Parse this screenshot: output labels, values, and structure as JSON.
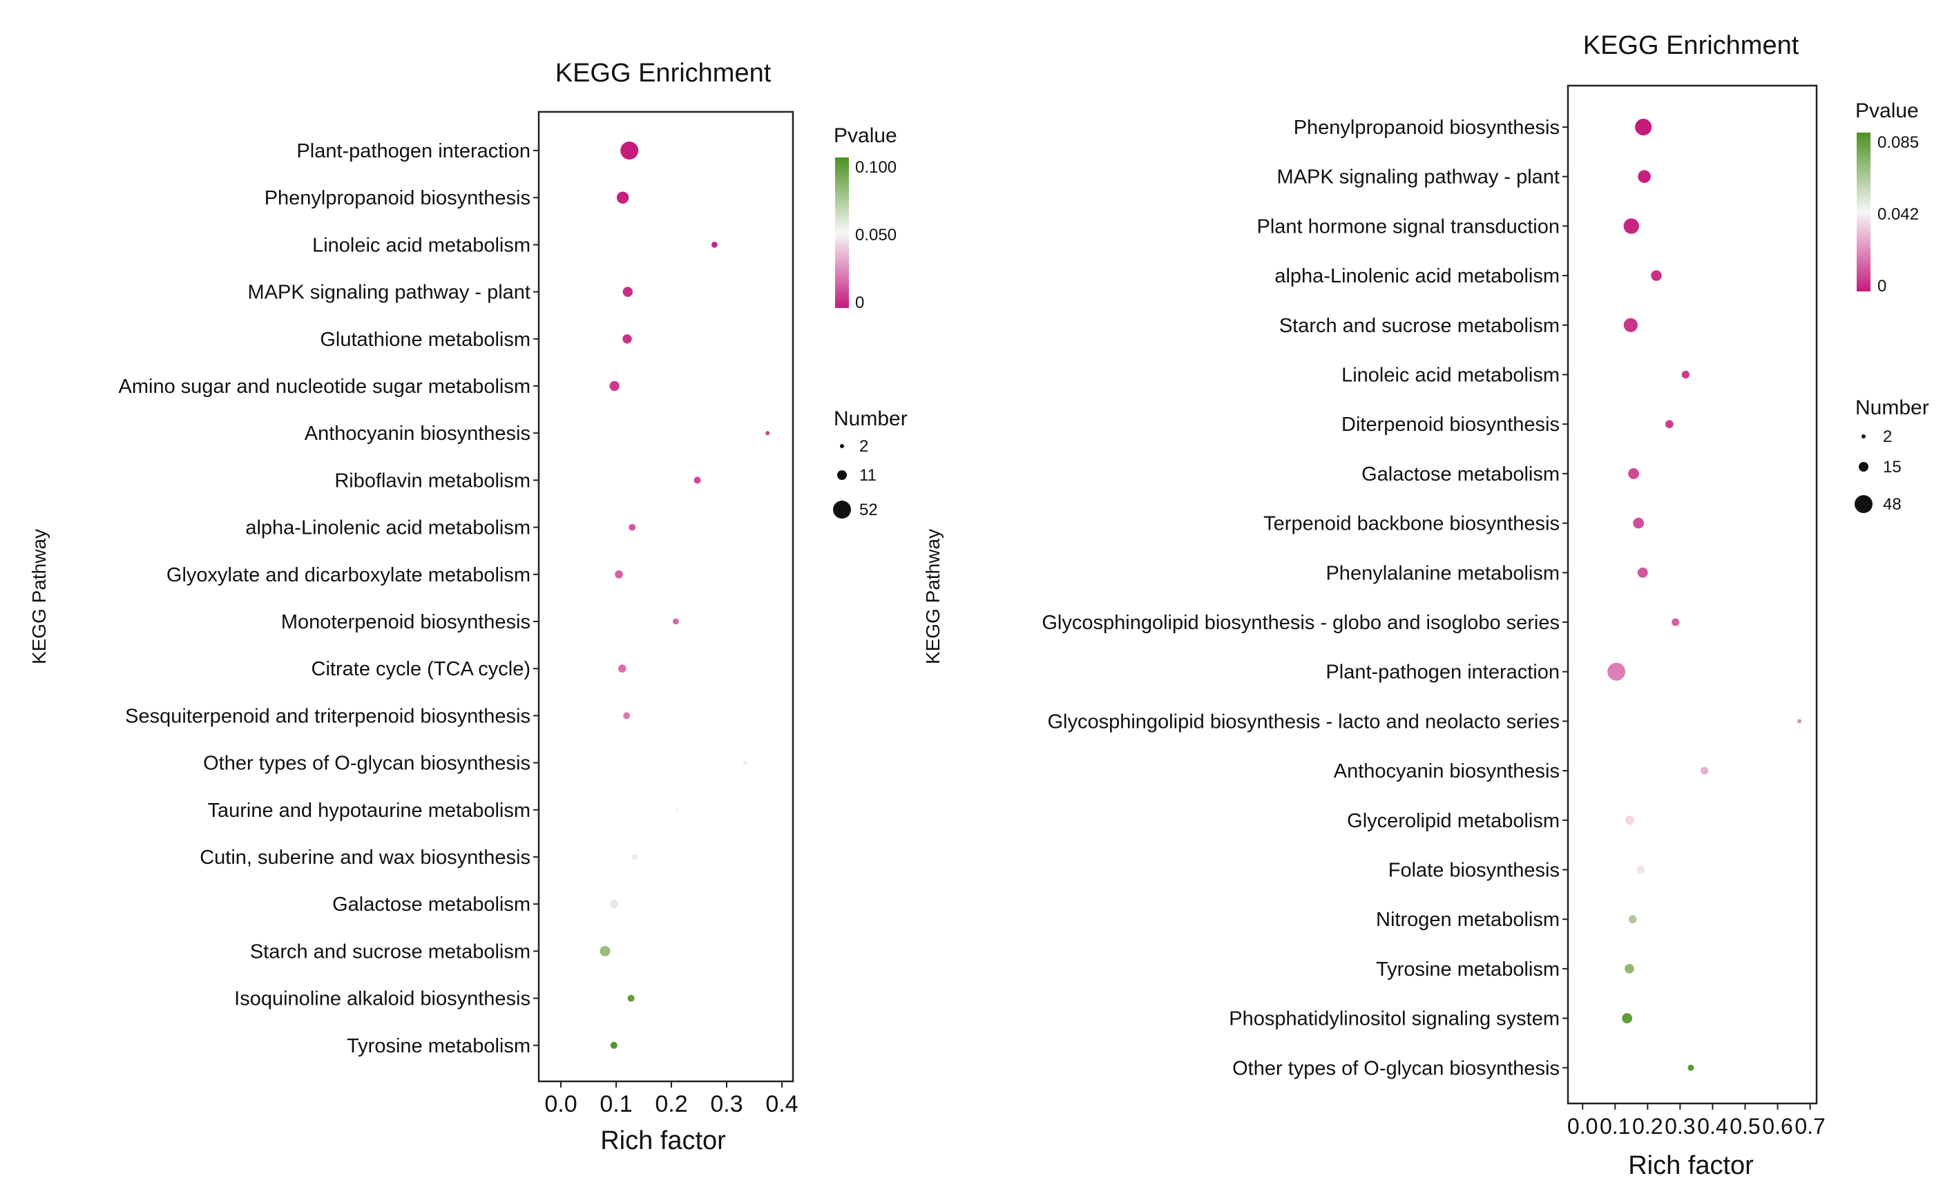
{
  "chart_data": [
    {
      "type": "scatter",
      "title": "KEGG Enrichment",
      "xlabel": "Rich factor",
      "ylabel": "KEGG Pathway",
      "xlim": [
        -0.04,
        0.42
      ],
      "xticks": [
        "0.0",
        "0.1",
        "0.2",
        "0.3",
        "0.4"
      ],
      "xtick_values": [
        0.0,
        0.1,
        0.2,
        0.3,
        0.4
      ],
      "pvalue_legend": {
        "title": "Pvalue",
        "labels": [
          "0.100",
          "0.050",
          "0"
        ],
        "max": 0.1
      },
      "number_legend": {
        "title": "Number",
        "labels": [
          "2",
          "11",
          "52"
        ],
        "values": [
          2,
          11,
          52
        ]
      },
      "points": [
        {
          "pathway": "Plant-pathogen interaction",
          "rich_factor": 0.124,
          "pvalue": 0.0,
          "number": 52
        },
        {
          "pathway": "Phenylpropanoid biosynthesis",
          "rich_factor": 0.112,
          "pvalue": 0.001,
          "number": 18
        },
        {
          "pathway": "Linoleic acid metabolism",
          "rich_factor": 0.278,
          "pvalue": 0.003,
          "number": 3
        },
        {
          "pathway": "MAPK signaling pathway - plant",
          "rich_factor": 0.121,
          "pvalue": 0.004,
          "number": 11
        },
        {
          "pathway": "Glutathione metabolism",
          "rich_factor": 0.12,
          "pvalue": 0.005,
          "number": 9
        },
        {
          "pathway": "Amino sugar and nucleotide sugar metabolism",
          "rich_factor": 0.097,
          "pvalue": 0.007,
          "number": 11
        },
        {
          "pathway": "Anthocyanin biosynthesis",
          "rich_factor": 0.374,
          "pvalue": 0.008,
          "number": 2
        },
        {
          "pathway": "Riboflavin metabolism",
          "rich_factor": 0.247,
          "pvalue": 0.01,
          "number": 4
        },
        {
          "pathway": "alpha-Linolenic acid metabolism",
          "rich_factor": 0.129,
          "pvalue": 0.014,
          "number": 4
        },
        {
          "pathway": "Glyoxylate and dicarboxylate metabolism",
          "rich_factor": 0.105,
          "pvalue": 0.016,
          "number": 6
        },
        {
          "pathway": "Monoterpenoid biosynthesis",
          "rich_factor": 0.208,
          "pvalue": 0.018,
          "number": 3
        },
        {
          "pathway": "Citrate cycle (TCA cycle)",
          "rich_factor": 0.111,
          "pvalue": 0.02,
          "number": 6
        },
        {
          "pathway": "Sesquiterpenoid and triterpenoid biosynthesis",
          "rich_factor": 0.119,
          "pvalue": 0.022,
          "number": 4
        },
        {
          "pathway": "Other types of O-glycan biosynthesis",
          "rich_factor": 0.333,
          "pvalue": 0.048,
          "number": 2
        },
        {
          "pathway": "Taurine and hypotaurine metabolism",
          "rich_factor": 0.211,
          "pvalue": 0.05,
          "number": 2
        },
        {
          "pathway": "Cutin, suberine and wax biosynthesis",
          "rich_factor": 0.134,
          "pvalue": 0.052,
          "number": 3
        },
        {
          "pathway": "Galactose metabolism",
          "rich_factor": 0.096,
          "pvalue": 0.054,
          "number": 8
        },
        {
          "pathway": "Starch and sucrose metabolism",
          "rich_factor": 0.08,
          "pvalue": 0.078,
          "number": 12
        },
        {
          "pathway": "Isoquinoline alkaloid biosynthesis",
          "rich_factor": 0.127,
          "pvalue": 0.094,
          "number": 4
        },
        {
          "pathway": "Tyrosine metabolism",
          "rich_factor": 0.096,
          "pvalue": 0.098,
          "number": 4
        }
      ]
    },
    {
      "type": "scatter",
      "title": "KEGG Enrichment",
      "xlabel": "Rich factor",
      "ylabel": "KEGG Pathway",
      "xlim": [
        -0.045,
        0.72
      ],
      "xticks": [
        "0.0",
        "0.1",
        "0.2",
        "0.3",
        "0.4",
        "0.5",
        "0.6",
        "0.7"
      ],
      "xtick_values": [
        0.0,
        0.1,
        0.2,
        0.3,
        0.4,
        0.5,
        0.6,
        0.7
      ],
      "pvalue_legend": {
        "title": "Pvalue",
        "labels": [
          "0.085",
          "0.042",
          "0"
        ],
        "max": 0.085
      },
      "number_legend": {
        "title": "Number",
        "labels": [
          "2",
          "15",
          "48"
        ],
        "values": [
          2,
          15,
          48
        ]
      },
      "points": [
        {
          "pathway": "Phenylpropanoid biosynthesis",
          "rich_factor": 0.187,
          "pvalue": 0.0,
          "number": 40
        },
        {
          "pathway": "MAPK signaling pathway - plant",
          "rich_factor": 0.19,
          "pvalue": 0.001,
          "number": 20
        },
        {
          "pathway": "Plant hormone signal transduction",
          "rich_factor": 0.15,
          "pvalue": 0.002,
          "number": 33
        },
        {
          "pathway": "alpha-Linolenic acid metabolism",
          "rich_factor": 0.227,
          "pvalue": 0.004,
          "number": 12
        },
        {
          "pathway": "Starch and sucrose metabolism",
          "rich_factor": 0.148,
          "pvalue": 0.005,
          "number": 25
        },
        {
          "pathway": "Linoleic acid metabolism",
          "rich_factor": 0.317,
          "pvalue": 0.006,
          "number": 5
        },
        {
          "pathway": "Diterpenoid biosynthesis",
          "rich_factor": 0.267,
          "pvalue": 0.007,
          "number": 6
        },
        {
          "pathway": "Galactose metabolism",
          "rich_factor": 0.157,
          "pvalue": 0.009,
          "number": 13
        },
        {
          "pathway": "Terpenoid backbone biosynthesis",
          "rich_factor": 0.172,
          "pvalue": 0.01,
          "number": 13
        },
        {
          "pathway": "Phenylalanine metabolism",
          "rich_factor": 0.185,
          "pvalue": 0.012,
          "number": 11
        },
        {
          "pathway": "Glycosphingolipid biosynthesis - globo and isoglobo series",
          "rich_factor": 0.286,
          "pvalue": 0.014,
          "number": 5
        },
        {
          "pathway": "Plant-pathogen interaction",
          "rich_factor": 0.104,
          "pvalue": 0.02,
          "number": 48
        },
        {
          "pathway": "Glycosphingolipid biosynthesis - lacto and neolacto series",
          "rich_factor": 0.667,
          "pvalue": 0.022,
          "number": 2
        },
        {
          "pathway": "Anthocyanin biosynthesis",
          "rich_factor": 0.375,
          "pvalue": 0.03,
          "number": 5
        },
        {
          "pathway": "Glycerolipid metabolism",
          "rich_factor": 0.145,
          "pvalue": 0.038,
          "number": 8
        },
        {
          "pathway": "Folate biosynthesis",
          "rich_factor": 0.179,
          "pvalue": 0.04,
          "number": 6
        },
        {
          "pathway": "Nitrogen metabolism",
          "rich_factor": 0.154,
          "pvalue": 0.06,
          "number": 6
        },
        {
          "pathway": "Tyrosine metabolism",
          "rich_factor": 0.144,
          "pvalue": 0.068,
          "number": 9
        },
        {
          "pathway": "Phosphatidylinositol signaling system",
          "rich_factor": 0.137,
          "pvalue": 0.08,
          "number": 11
        },
        {
          "pathway": "Other types of O-glycan biosynthesis",
          "rich_factor": 0.333,
          "pvalue": 0.082,
          "number": 3
        }
      ]
    }
  ]
}
